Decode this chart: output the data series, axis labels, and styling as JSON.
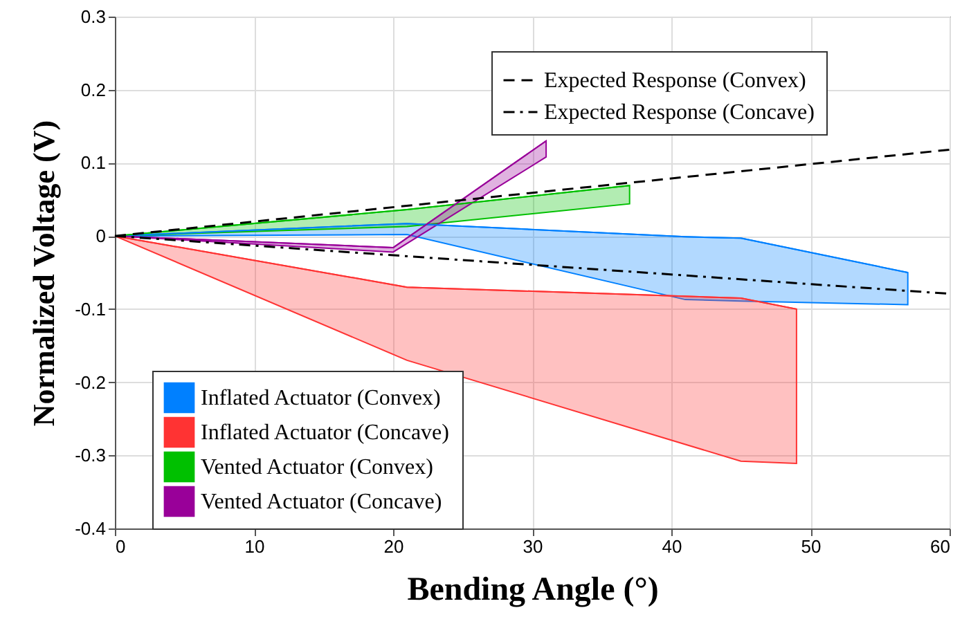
{
  "chart_data": {
    "type": "line",
    "xlabel": "Bending Angle (°)",
    "ylabel": "Normalized Voltage (V)",
    "xlim": [
      0,
      60
    ],
    "xticks": [
      0,
      10,
      20,
      30,
      40,
      50,
      60
    ],
    "ylim": [
      -0.4,
      0.3
    ],
    "yticks": [
      -0.4,
      -0.3,
      -0.2,
      -0.1,
      0,
      0.1,
      0.2,
      0.3
    ],
    "grid": true,
    "legend": "bottom left",
    "series": [
      {
        "name": "Inflated Actuator (Convex)",
        "color": "#0080ff",
        "x": [
          0,
          21,
          41,
          45,
          57
        ],
        "lower": [
          0,
          0.002,
          -0.087,
          -0.089,
          -0.094
        ],
        "upper": [
          0,
          0.017,
          -0.001,
          -0.003,
          -0.05
        ],
        "values": [
          0,
          0.017,
          -0.001,
          -0.003,
          -0.05
        ]
      },
      {
        "name": "Inflated Actuator (Concave)",
        "color": "#ff3333",
        "x": [
          0,
          21,
          45,
          49
        ],
        "lower": [
          0,
          -0.17,
          -0.308,
          -0.311
        ],
        "upper": [
          0,
          -0.07,
          -0.085,
          -0.1
        ],
        "values": [
          0,
          -0.07,
          -0.085,
          -0.1
        ]
      },
      {
        "name": "Vented Actuator (Convex)",
        "color": "#00c000",
        "x": [
          0,
          21,
          37
        ],
        "lower": [
          0,
          0.013,
          0.044
        ],
        "upper": [
          0,
          0.036,
          0.069
        ],
        "values": [
          0,
          0.036,
          0.069
        ]
      },
      {
        "name": "Vented Actuator (Concave)",
        "color": "#990099",
        "x": [
          0,
          20,
          31
        ],
        "lower": [
          0,
          -0.022,
          0.108
        ],
        "upper": [
          0,
          -0.016,
          0.13
        ],
        "values": [
          0,
          -0.016,
          0.13
        ]
      },
      {
        "name": "Expected Response (Convex)",
        "line_style": "dashed",
        "color": "#000000",
        "x": [
          0,
          60
        ],
        "values": [
          0,
          0.118
        ]
      },
      {
        "name": "Expected Response (Concave)",
        "line_style": "dashdot",
        "color": "#000000",
        "x": [
          0,
          60
        ],
        "values": [
          0,
          -0.079
        ]
      }
    ]
  }
}
